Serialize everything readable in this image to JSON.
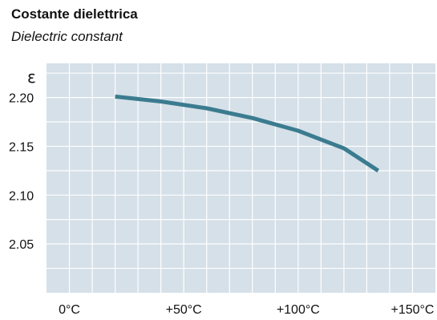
{
  "chart_data": {
    "type": "line",
    "title": "Costante dielettrica",
    "subtitle": "Dielectric constant",
    "ylabel": "ε",
    "xlabel": "",
    "xlim": [
      -10,
      160
    ],
    "ylim": [
      2.0,
      2.235
    ],
    "x_ticks": [
      0,
      50,
      100,
      150
    ],
    "x_tick_labels": [
      "0°C",
      "+50°C",
      "+100°C",
      "+150°C"
    ],
    "y_ticks": [
      2.2,
      2.15,
      2.1,
      2.05
    ],
    "y_tick_labels": [
      "2.20",
      "2.15",
      "2.10",
      "2.05"
    ],
    "grid": true,
    "colors": {
      "background": "#d5e0e8",
      "grid": "#ffffff",
      "line": "#3b7b8f"
    },
    "series": [
      {
        "x": [
          20,
          40,
          60,
          80,
          100,
          120,
          135
        ],
        "values": [
          2.201,
          2.196,
          2.189,
          2.179,
          2.166,
          2.148,
          2.125
        ]
      }
    ]
  }
}
